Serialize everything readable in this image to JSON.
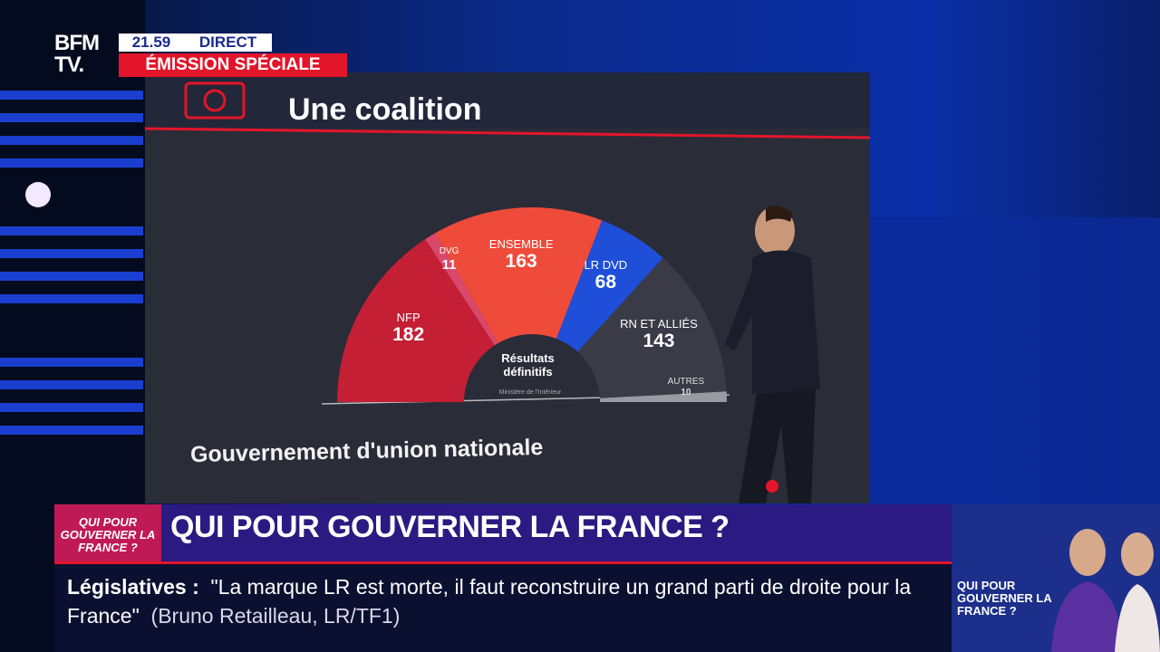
{
  "header": {
    "logo_top": "BFM",
    "logo_bottom": "TV.",
    "time": "21.59",
    "live": "DIRECT",
    "program": "ÉMISSION SPÉCIALE"
  },
  "screen": {
    "title": "Une coalition",
    "subtitle": "Gouvernement d'union nationale"
  },
  "chart_data": {
    "type": "pie",
    "shape": "semicircle",
    "center_label": "Résultats définitifs",
    "source": "Ministère de l'Intérieur",
    "categories": [
      "NFP",
      "DVG",
      "ENSEMBLE",
      "LR DVD",
      "RN ET ALLIÉS",
      "AUTRES"
    ],
    "values": [
      182,
      11,
      163,
      68,
      143,
      10
    ],
    "colors": [
      "#c51f35",
      "#d9486a",
      "#ee4b3b",
      "#1f4fd8",
      "#3a3b47",
      "#9a9aa2"
    ]
  },
  "ticker": {
    "badge": "QUI POUR GOUVERNER LA FRANCE ?",
    "headline": "QUI POUR GOUVERNER LA FRANCE ?",
    "topic": "Législatives :",
    "quote": "\"La marque LR est morte, il faut reconstruire un grand parti de droite pour la France\"",
    "attribution": "(Bruno Retailleau, LR/TF1)",
    "promo": "QUI POUR GOUVERNER LA FRANCE ?"
  }
}
